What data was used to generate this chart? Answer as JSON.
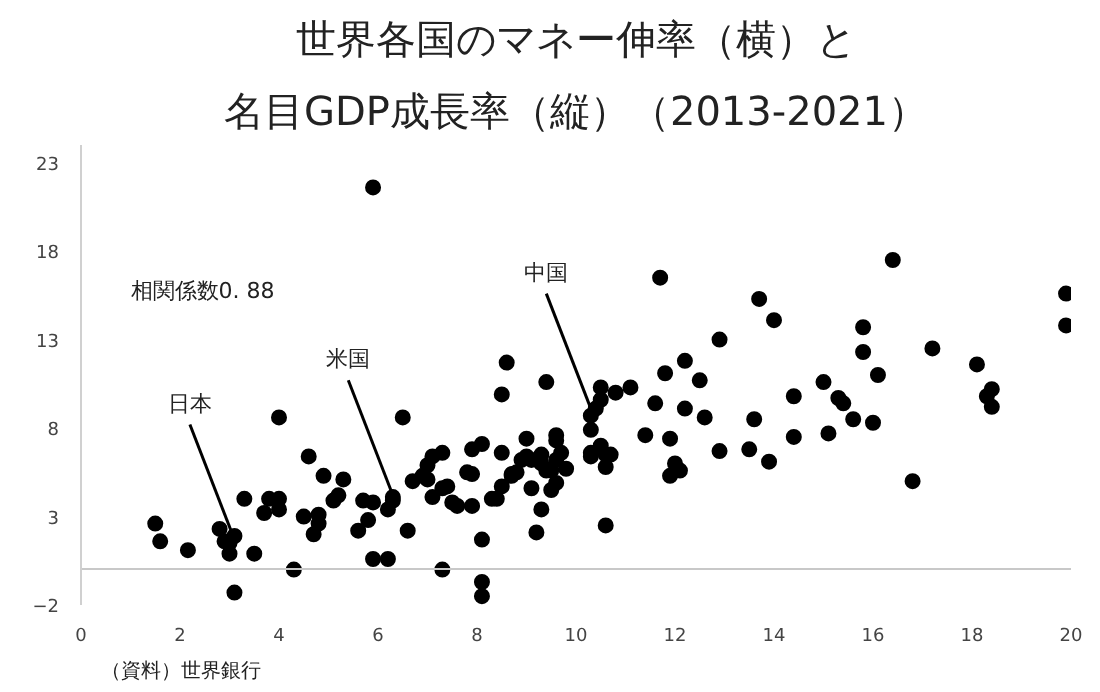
{
  "chart_data": {
    "type": "scatter",
    "title": "世界各国のマネー伸率（横）と",
    "subtitle": "名目GDP成長率（縦）（2013-2021）",
    "xlim": [
      0,
      20
    ],
    "xticks": [
      0,
      2,
      4,
      6,
      8,
      10,
      12,
      14,
      16,
      18,
      20
    ],
    "ylim": [
      -2,
      24
    ],
    "yticks": [
      -2,
      3,
      8,
      13,
      18,
      23
    ],
    "grid": false,
    "marker": "circle",
    "series": [
      {
        "color": "#000000",
        "x": [
          1.5,
          1.6,
          2.16,
          2.8,
          2.9,
          3.0,
          3.1,
          3.0,
          3.1,
          3.3,
          3.5,
          3.7,
          3.8,
          4.0,
          4.0,
          4.0,
          4.3,
          4.5,
          4.6,
          4.8,
          4.8,
          4.7,
          4.9,
          5.1,
          5.2,
          5.3,
          5.6,
          5.7,
          5.9,
          5.8,
          5.9,
          5.9,
          6.2,
          6.2,
          6.3,
          6.3,
          6.5,
          6.6,
          6.7,
          6.9,
          7.0,
          7.0,
          7.1,
          7.1,
          7.3,
          7.3,
          7.3,
          7.4,
          7.5,
          7.6,
          7.9,
          7.8,
          7.9,
          7.9,
          8.1,
          8.1,
          8.1,
          8.1,
          8.3,
          8.4,
          8.5,
          8.5,
          8.6,
          8.5,
          8.7,
          8.7,
          8.8,
          8.9,
          9.0,
          9.1,
          9.0,
          9.1,
          9.2,
          9.3,
          9.3,
          9.3,
          9.4,
          9.4,
          9.5,
          9.5,
          9.6,
          9.6,
          9.6,
          9.6,
          9.7,
          9.8,
          10.3,
          10.3,
          10.3,
          10.3,
          10.4,
          10.5,
          10.5,
          10.5,
          10.6,
          10.7,
          10.6,
          10.6,
          10.8,
          11.1,
          11.4,
          11.6,
          11.7,
          11.8,
          11.9,
          12.0,
          12.1,
          11.9,
          12.2,
          12.2,
          12.5,
          12.6,
          12.9,
          12.9,
          13.5,
          13.6,
          13.7,
          13.9,
          14.0,
          14.4,
          14.4,
          15.0,
          15.3,
          15.4,
          15.1,
          15.6,
          15.8,
          15.8,
          16.1,
          16.0,
          16.4,
          16.8,
          17.2,
          18.1,
          18.3,
          18.4,
          18.4,
          19.9,
          19.9
        ],
        "values": [
          2.6,
          1.6,
          1.1,
          2.3,
          1.6,
          0.9,
          1.9,
          1.5,
          -1.3,
          4.0,
          0.9,
          3.2,
          4.0,
          4.0,
          3.4,
          8.6,
          0.0,
          3.0,
          6.4,
          3.1,
          2.6,
          2.0,
          5.3,
          3.9,
          4.2,
          5.1,
          2.2,
          3.9,
          3.8,
          2.8,
          21.6,
          0.6,
          0.6,
          3.4,
          4.1,
          3.9,
          8.6,
          2.2,
          5.0,
          5.3,
          5.1,
          5.9,
          6.4,
          4.1,
          6.6,
          4.6,
          0.0,
          4.7,
          3.8,
          3.6,
          6.8,
          5.5,
          5.4,
          3.6,
          1.7,
          7.1,
          -0.7,
          -1.5,
          4.0,
          4.0,
          6.6,
          9.9,
          11.7,
          4.7,
          5.3,
          5.4,
          5.5,
          6.2,
          6.4,
          6.2,
          7.4,
          4.6,
          2.1,
          3.4,
          6.5,
          6.0,
          5.6,
          10.6,
          4.5,
          5.6,
          4.9,
          6.2,
          7.6,
          7.3,
          6.6,
          5.7,
          7.9,
          8.7,
          6.6,
          6.4,
          9.1,
          9.6,
          10.3,
          7.0,
          6.5,
          6.5,
          5.8,
          2.5,
          10.0,
          10.3,
          7.6,
          9.4,
          16.5,
          11.1,
          7.4,
          6.0,
          5.6,
          5.3,
          11.8,
          9.1,
          10.7,
          8.6,
          6.7,
          13.0,
          6.8,
          8.5,
          15.3,
          6.1,
          14.1,
          9.8,
          7.5,
          10.6,
          9.7,
          9.4,
          7.7,
          8.5,
          13.7,
          12.3,
          11.0,
          8.3,
          17.5,
          5.0,
          12.5,
          11.6,
          9.8,
          10.2,
          9.2,
          15.6,
          13.8
        ]
      }
    ],
    "annotations": [
      "相関係数0. 88",
      {
        "text": "日本",
        "x": 3.1,
        "y": 1.7
      },
      {
        "text": "米国",
        "x": 6.3,
        "y": 4.2
      },
      {
        "text": "中国",
        "x": 10.3,
        "y": 9.1
      },
      "（資料）世界銀行"
    ]
  }
}
